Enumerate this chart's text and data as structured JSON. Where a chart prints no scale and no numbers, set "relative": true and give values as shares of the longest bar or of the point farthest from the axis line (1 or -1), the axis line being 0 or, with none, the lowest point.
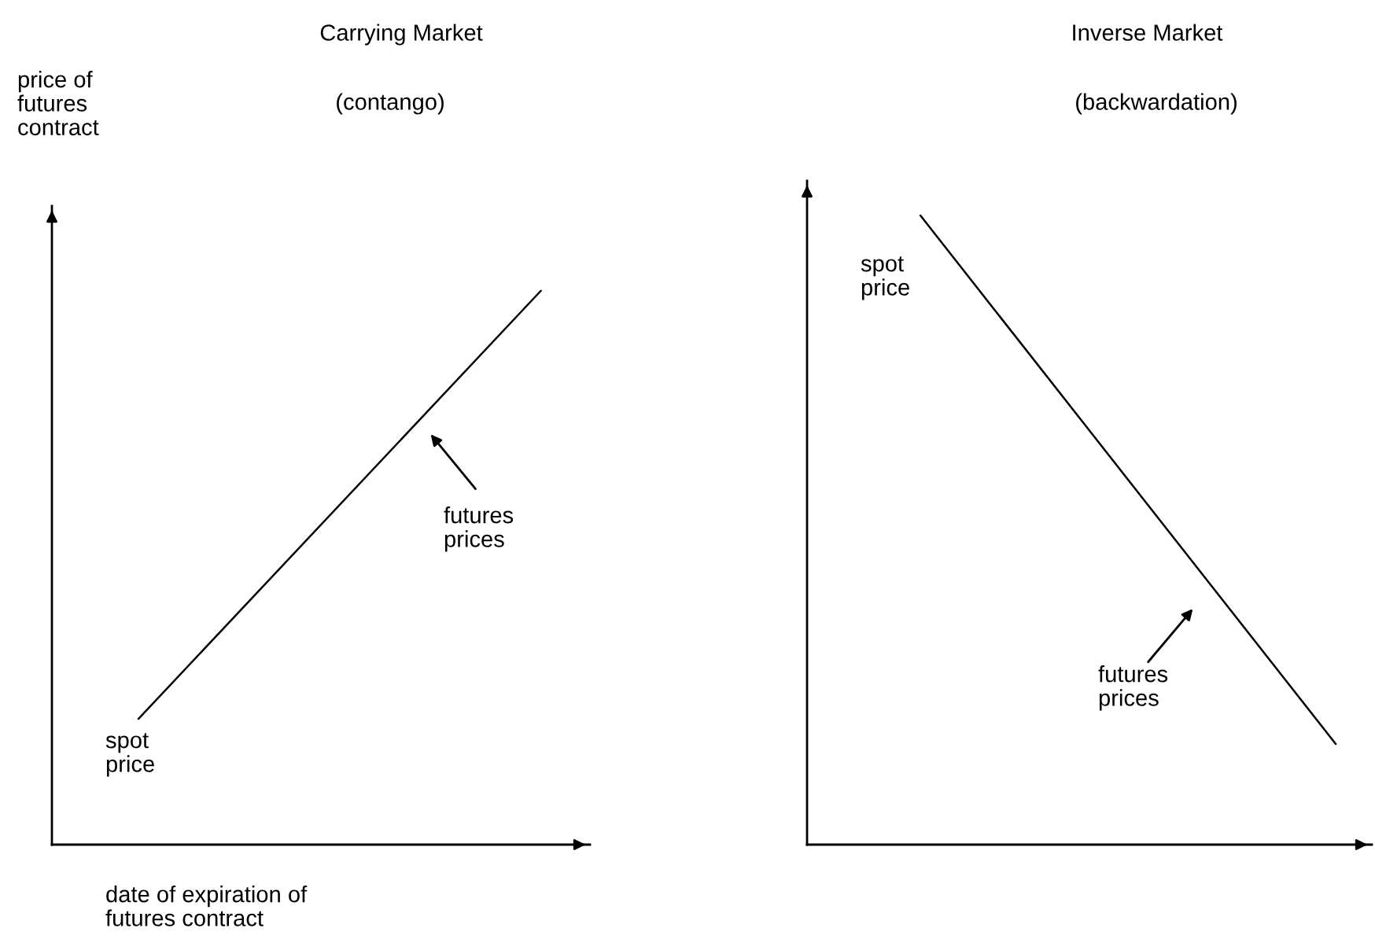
{
  "chart_data": [
    {
      "type": "line",
      "title": "Carrying Market",
      "subtitle": "(contango)",
      "ylabel": "price of\nfutures\ncontract",
      "xlabel": "date of expiration of\nfutures contract",
      "relative": true,
      "categories": [
        null,
        null
      ],
      "series": [
        {
          "color": "#000000",
          "values": [
            0.227,
            1
          ]
        }
      ],
      "annotations": [
        "spot\nprice",
        "futures\nprices"
      ]
    },
    {
      "type": "line",
      "title": "Inverse Market",
      "subtitle": "(backwardation)",
      "relative": true,
      "categories": [
        null,
        null
      ],
      "series": [
        {
          "color": "#000000",
          "values": [
            1,
            0.16
          ]
        }
      ],
      "annotations": [
        "spot\nprice",
        "futures\nprices"
      ]
    }
  ]
}
